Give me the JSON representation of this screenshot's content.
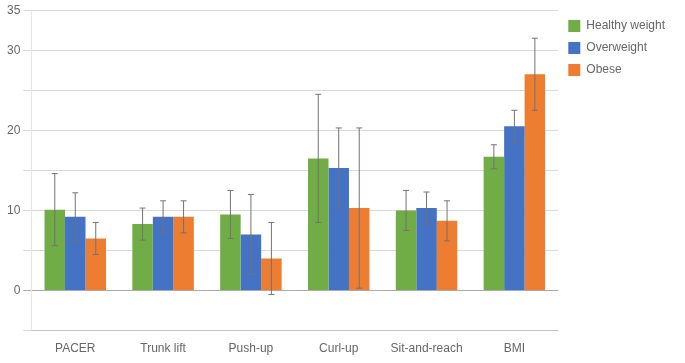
{
  "chart_data": {
    "type": "bar",
    "categories": [
      "PACER",
      "Trunk lift",
      "Push-up",
      "Curl-up",
      "Sit-and-reach",
      "BMI"
    ],
    "series": [
      {
        "name": "Healthy weight",
        "color": "#70ad47",
        "values": [
          10.1,
          8.3,
          9.5,
          16.5,
          10.0,
          16.7
        ],
        "errors": [
          4.5,
          2.0,
          3.0,
          8.0,
          2.5,
          1.5
        ]
      },
      {
        "name": "Overweight",
        "color": "#4472c4",
        "values": [
          9.2,
          9.2,
          7.0,
          15.3,
          10.3,
          20.5
        ],
        "errors": [
          3.0,
          2.0,
          5.0,
          5.0,
          2.0,
          2.0
        ]
      },
      {
        "name": "Obese",
        "color": "#ed7d31",
        "values": [
          6.5,
          9.2,
          4.0,
          10.3,
          8.7,
          27.0
        ],
        "errors": [
          2.0,
          2.0,
          4.5,
          10.0,
          2.5,
          4.5
        ]
      }
    ],
    "ylim": [
      -5,
      35
    ],
    "yticks": [
      {
        "value": -5,
        "label": ""
      },
      0,
      {
        "value": 5,
        "label": ""
      },
      10,
      {
        "value": 15,
        "label": ""
      },
      20,
      {
        "value": 25,
        "label": ""
      },
      30,
      35
    ],
    "grid": true,
    "legend": "right"
  }
}
